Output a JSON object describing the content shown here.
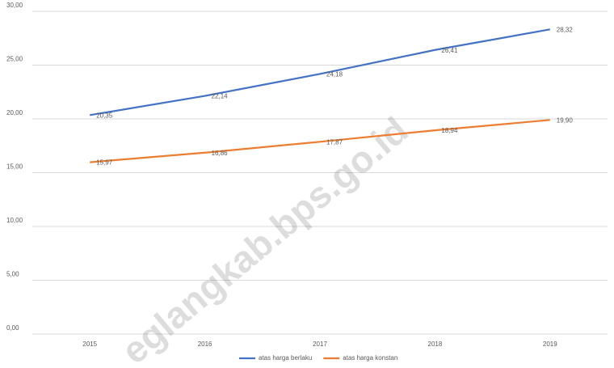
{
  "chart_data": {
    "type": "line",
    "categories": [
      "2015",
      "2016",
      "2017",
      "2018",
      "2019"
    ],
    "series": [
      {
        "name": "atas harga berlaku",
        "color": "#4472c4",
        "values": [
          20.35,
          22.14,
          24.18,
          26.41,
          28.32
        ],
        "value_labels": [
          "20,35",
          "22,14",
          "24,18",
          "26,41",
          "28,32"
        ]
      },
      {
        "name": "atas harga konstan",
        "color": "#ed7d31",
        "values": [
          15.97,
          16.86,
          17.87,
          18.94,
          19.9
        ],
        "value_labels": [
          "15,97",
          "16,86",
          "17,87",
          "18,94",
          "19,90"
        ]
      }
    ],
    "ylim": [
      0,
      30
    ],
    "yticks": [
      {
        "value": 0,
        "label": "0,00"
      },
      {
        "value": 5,
        "label": "5,00"
      },
      {
        "value": 10,
        "label": "10,00"
      },
      {
        "value": 15,
        "label": "15,00"
      },
      {
        "value": 20,
        "label": "20,00"
      },
      {
        "value": 25,
        "label": "25,00"
      },
      {
        "value": 30,
        "label": "30,00"
      }
    ],
    "grid": true,
    "legend": "bottom",
    "watermark": "eglangkab.bps.go.id"
  }
}
